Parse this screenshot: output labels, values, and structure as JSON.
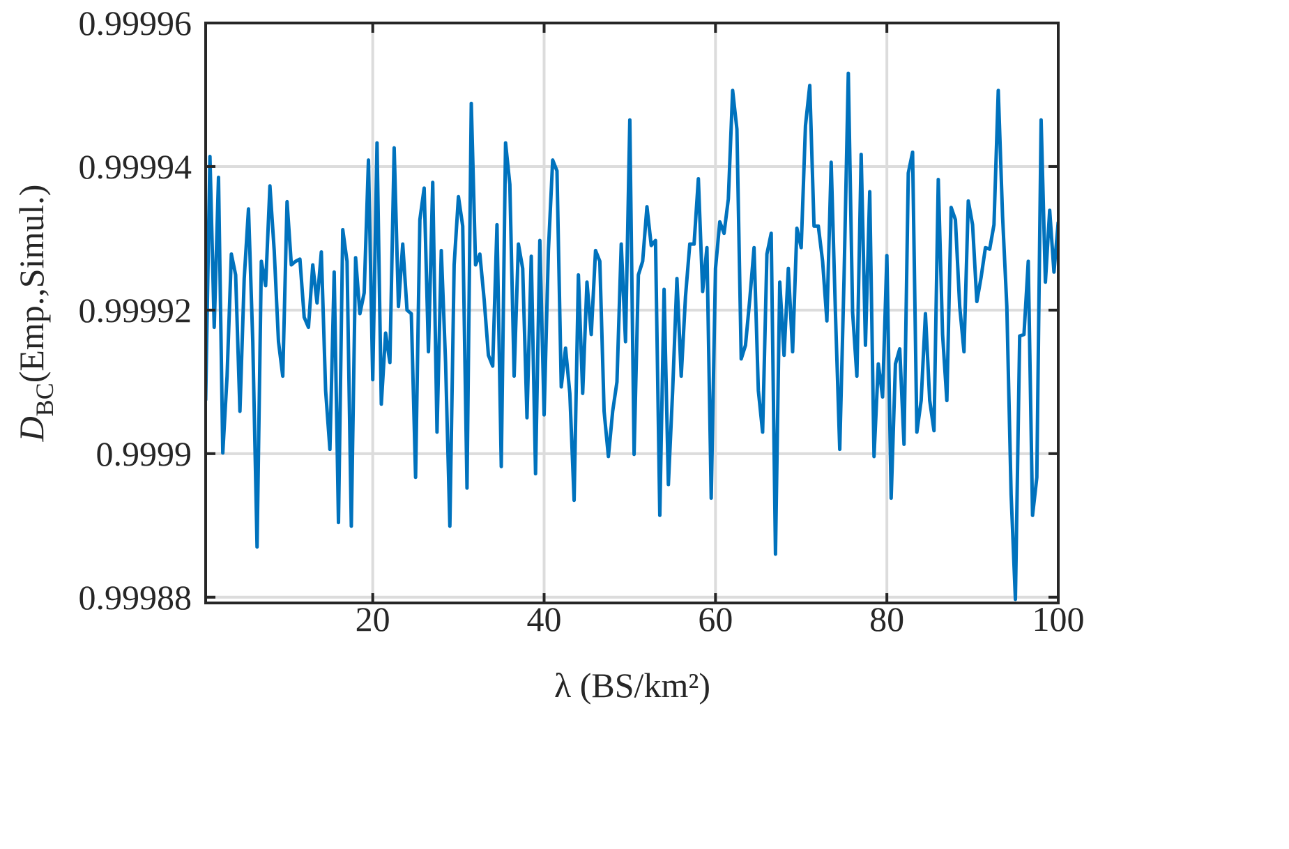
{
  "chart_data": {
    "type": "line",
    "xlabel": "λ (BS/km²)",
    "ylabel": [
      "D",
      "BC",
      "(Emp.,Simul.)"
    ],
    "xlim": [
      0.5,
      100
    ],
    "xticks": [
      20,
      40,
      60,
      80,
      100
    ],
    "ylim": [
      0.9998792,
      0.99996
    ],
    "yticks": [
      0.99988,
      0.9999,
      0.99992,
      0.99994,
      0.99996
    ],
    "grid": true,
    "x": [
      0.5,
      1,
      1.5,
      2,
      2.5,
      3,
      3.5,
      4,
      4.5,
      5,
      5.5,
      6,
      6.5,
      7,
      7.5,
      8,
      8.5,
      9,
      9.5,
      10,
      10.5,
      11,
      11.5,
      12,
      12.5,
      13,
      13.5,
      14,
      14.5,
      15,
      15.5,
      16,
      16.5,
      17,
      17.5,
      18,
      18.5,
      19,
      19.5,
      20,
      20.5,
      21,
      21.5,
      22,
      22.5,
      23,
      23.5,
      24,
      24.5,
      25,
      25.5,
      26,
      26.5,
      27,
      27.5,
      28,
      28.5,
      29,
      29.5,
      30,
      30.5,
      31,
      31.5,
      32,
      32.5,
      33,
      33.5,
      34,
      34.5,
      35,
      35.5,
      36,
      36.5,
      37,
      37.5,
      38,
      38.5,
      39,
      39.5,
      40,
      40.5,
      41,
      41.5,
      42,
      42.5,
      43,
      43.5,
      44,
      44.5,
      45,
      45.5,
      46,
      46.5,
      47,
      47.5,
      48,
      48.5,
      49,
      49.5,
      50,
      50.5,
      51,
      51.5,
      52,
      52.5,
      53,
      53.5,
      54,
      54.5,
      55,
      55.5,
      56,
      56.5,
      57,
      57.5,
      58,
      58.5,
      59,
      59.5,
      60,
      60.5,
      61,
      61.5,
      62,
      62.5,
      63,
      63.5,
      64,
      64.5,
      65,
      65.5,
      66,
      66.5,
      67,
      67.5,
      68,
      68.5,
      69,
      69.5,
      70,
      70.5,
      71,
      71.5,
      72,
      72.5,
      73,
      73.5,
      74,
      74.5,
      75,
      75.5,
      76,
      76.5,
      77,
      77.5,
      78,
      78.5,
      79,
      79.5,
      80,
      80.5,
      81,
      81.5,
      82,
      82.5,
      83,
      83.5,
      84,
      84.5,
      85,
      85.5,
      86,
      86.5,
      87,
      87.5,
      88,
      88.5,
      89,
      89.5,
      90,
      90.5,
      91,
      91.5,
      92,
      92.5,
      93,
      93.5,
      94,
      94.5,
      95,
      95.5,
      96,
      96.5,
      97,
      97.5,
      98,
      98.5,
      99,
      99.5,
      100
    ],
    "series": [
      {
        "color": "#0072bd",
        "values": [
          0.9999074,
          0.9999414,
          0.9999176,
          0.9999385,
          0.9999001,
          0.9999108,
          0.9999278,
          0.9999249,
          0.9999059,
          0.9999244,
          0.9999341,
          0.9999156,
          0.999887,
          0.9999268,
          0.9999234,
          0.9999373,
          0.9999283,
          0.9999156,
          0.9999108,
          0.9999351,
          0.9999263,
          0.9999268,
          0.9999271,
          0.999919,
          0.9999176,
          0.9999263,
          0.999921,
          0.9999281,
          0.9999088,
          0.9999006,
          0.9999253,
          0.9998904,
          0.9999312,
          0.9999268,
          0.9998899,
          0.9999273,
          0.9999195,
          0.9999224,
          0.9999409,
          0.9999103,
          0.9999433,
          0.9999069,
          0.9999168,
          0.9999127,
          0.9999426,
          0.9999205,
          0.9999292,
          0.99992,
          0.9999195,
          0.9998967,
          0.9999326,
          0.999937,
          0.9999142,
          0.9999378,
          0.999903,
          0.9999283,
          0.9999127,
          0.9998899,
          0.9999263,
          0.9999358,
          0.9999317,
          0.9998952,
          0.9999488,
          0.9999263,
          0.9999278,
          0.9999215,
          0.9999137,
          0.9999122,
          0.9999319,
          0.9998982,
          0.9999433,
          0.9999375,
          0.9999108,
          0.9999292,
          0.9999258,
          0.999905,
          0.9999275,
          0.9998972,
          0.9999297,
          0.9999054,
          0.9999283,
          0.9999409,
          0.9999394,
          0.9999093,
          0.9999147,
          0.9999084,
          0.9998935,
          0.9999249,
          0.9999084,
          0.9999239,
          0.9999166,
          0.9999283,
          0.9999268,
          0.9999059,
          0.9998996,
          0.9999059,
          0.99991,
          0.9999292,
          0.9999156,
          0.9999465,
          0.9998999,
          0.9999249,
          0.9999268,
          0.9999344,
          0.999929,
          0.9999297,
          0.9998914,
          0.9999229,
          0.9998957,
          0.9999088,
          0.9999244,
          0.9999108,
          0.9999219,
          0.9999292,
          0.9999292,
          0.9999383,
          0.9999226,
          0.9999287,
          0.9998938,
          0.9999258,
          0.9999323,
          0.9999307,
          0.9999355,
          0.9999506,
          0.9999452,
          0.9999132,
          0.9999151,
          0.9999215,
          0.9999287,
          0.9999088,
          0.999903,
          0.9999278,
          0.9999307,
          0.999886,
          0.9999239,
          0.9999137,
          0.9999258,
          0.9999142,
          0.9999314,
          0.9999287,
          0.9999457,
          0.9999513,
          0.9999317,
          0.9999317,
          0.9999268,
          0.9999185,
          0.9999406,
          0.9999195,
          0.9999006,
          0.9999244,
          0.999953,
          0.9999197,
          0.9999108,
          0.9999417,
          0.9999151,
          0.9999365,
          0.9998996,
          0.9999125,
          0.9999079,
          0.9999276,
          0.9998938,
          0.9999125,
          0.9999146,
          0.9999013,
          0.9999391,
          0.999942,
          0.999903,
          0.9999074,
          0.9999195,
          0.9999074,
          0.9999032,
          0.9999382,
          0.9999166,
          0.9999074,
          0.9999343,
          0.9999326,
          0.9999205,
          0.9999142,
          0.9999352,
          0.9999319,
          0.9999212,
          0.9999246,
          0.9999287,
          0.9999285,
          0.9999319,
          0.9999506,
          0.9999331,
          0.9999205,
          0.9998943,
          0.9998797,
          0.9999164,
          0.9999166,
          0.9999268,
          0.9998914,
          0.9998967,
          0.9999465,
          0.9999239,
          0.9999339,
          0.9999253,
          0.9999323
        ]
      }
    ]
  }
}
